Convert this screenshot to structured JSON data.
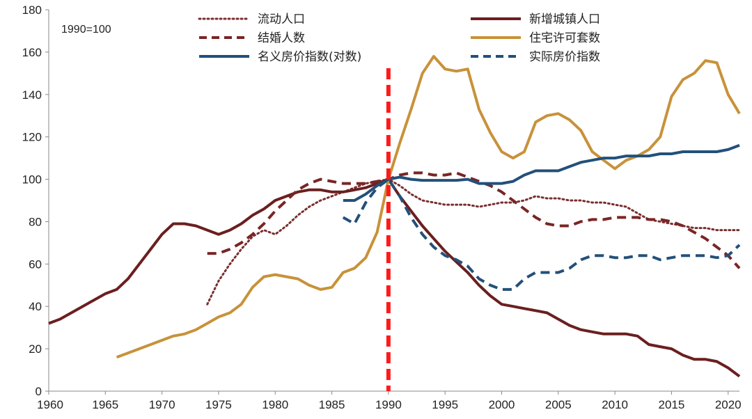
{
  "chart_data": {
    "type": "line",
    "title": "",
    "note": "1990=100",
    "xlabel": "",
    "ylabel": "",
    "xlim": [
      1960,
      2021
    ],
    "ylim": [
      0,
      180
    ],
    "x_ticks": [
      1960,
      1965,
      1970,
      1975,
      1980,
      1985,
      1990,
      1995,
      2000,
      2005,
      2010,
      2015,
      2020
    ],
    "y_ticks": [
      0,
      20,
      40,
      60,
      80,
      100,
      120,
      140,
      160,
      180
    ],
    "reference_line": {
      "x": 1990,
      "color": "#ff1a1a",
      "style": "dashed"
    },
    "series": [
      {
        "name": "流动人口",
        "color": "#7a2e2e",
        "style": "dotted",
        "x": [
          1974,
          1975,
          1976,
          1977,
          1978,
          1979,
          1980,
          1981,
          1982,
          1983,
          1984,
          1985,
          1986,
          1987,
          1988,
          1989,
          1990,
          1991,
          1992,
          1993,
          1994,
          1995,
          1996,
          1997,
          1998,
          1999,
          2000,
          2001,
          2002,
          2003,
          2004,
          2005,
          2006,
          2007,
          2008,
          2009,
          2010,
          2011,
          2012,
          2013,
          2014,
          2015,
          2016,
          2017,
          2018,
          2019,
          2020,
          2021
        ],
        "values": [
          41,
          52,
          60,
          67,
          73,
          76,
          74,
          78,
          83,
          87,
          90,
          92,
          94,
          96,
          98,
          99,
          100,
          97,
          93,
          90,
          89,
          88,
          88,
          88,
          87,
          88,
          89,
          89,
          90,
          92,
          91,
          91,
          90,
          90,
          89,
          89,
          88,
          87,
          84,
          81,
          80,
          79,
          78,
          77,
          77,
          76,
          76,
          76
        ]
      },
      {
        "name": "新增城镇人口",
        "color": "#6b1f1f",
        "style": "solid",
        "x": [
          1960,
          1961,
          1962,
          1963,
          1964,
          1965,
          1966,
          1967,
          1968,
          1969,
          1970,
          1971,
          1972,
          1973,
          1974,
          1975,
          1976,
          1977,
          1978,
          1979,
          1980,
          1981,
          1982,
          1983,
          1984,
          1985,
          1986,
          1987,
          1988,
          1989,
          1990,
          1991,
          1992,
          1993,
          1994,
          1995,
          1996,
          1997,
          1998,
          1999,
          2000,
          2001,
          2002,
          2003,
          2004,
          2005,
          2006,
          2007,
          2008,
          2009,
          2010,
          2011,
          2012,
          2013,
          2014,
          2015,
          2016,
          2017,
          2018,
          2019,
          2020,
          2021
        ],
        "values": [
          32,
          34,
          37,
          40,
          43,
          46,
          48,
          53,
          60,
          67,
          74,
          79,
          79,
          78,
          76,
          74,
          76,
          79,
          83,
          86,
          90,
          92,
          94,
          95,
          95,
          94,
          94,
          95,
          96,
          98,
          100,
          92,
          85,
          78,
          72,
          66,
          61,
          56,
          50,
          45,
          41,
          40,
          39,
          38,
          37,
          34,
          31,
          29,
          28,
          27,
          27,
          27,
          26,
          22,
          21,
          20,
          17,
          15,
          15,
          14,
          11,
          7
        ]
      },
      {
        "name": "结婚人数",
        "color": "#7a2525",
        "style": "dashed",
        "x": [
          1974,
          1975,
          1976,
          1977,
          1978,
          1979,
          1980,
          1981,
          1982,
          1983,
          1984,
          1985,
          1986,
          1987,
          1988,
          1989,
          1990,
          1991,
          1992,
          1993,
          1994,
          1995,
          1996,
          1997,
          1998,
          1999,
          2000,
          2001,
          2002,
          2003,
          2004,
          2005,
          2006,
          2007,
          2008,
          2009,
          2010,
          2011,
          2012,
          2013,
          2014,
          2015,
          2016,
          2017,
          2018,
          2019,
          2020,
          2021
        ],
        "values": [
          65,
          65,
          67,
          70,
          74,
          79,
          85,
          90,
          95,
          98,
          100,
          99,
          98,
          98,
          98,
          99,
          100,
          102,
          103,
          103,
          102,
          102,
          103,
          101,
          99,
          97,
          94,
          90,
          86,
          82,
          79,
          78,
          78,
          80,
          81,
          81,
          82,
          82,
          82,
          81,
          81,
          80,
          78,
          75,
          72,
          68,
          64,
          58
        ]
      },
      {
        "name": "住宅许可套数",
        "color": "#c8923a",
        "style": "solid",
        "x": [
          1966,
          1967,
          1968,
          1969,
          1970,
          1971,
          1972,
          1973,
          1974,
          1975,
          1976,
          1977,
          1978,
          1979,
          1980,
          1981,
          1982,
          1983,
          1984,
          1985,
          1986,
          1987,
          1988,
          1989,
          1990,
          1991,
          1992,
          1993,
          1994,
          1995,
          1996,
          1997,
          1998,
          1999,
          2000,
          2001,
          2002,
          2003,
          2004,
          2005,
          2006,
          2007,
          2008,
          2009,
          2010,
          2011,
          2012,
          2013,
          2014,
          2015,
          2016,
          2017,
          2018,
          2019,
          2020,
          2021
        ],
        "values": [
          16,
          18,
          20,
          22,
          24,
          26,
          27,
          29,
          32,
          35,
          37,
          41,
          49,
          54,
          55,
          54,
          53,
          50,
          48,
          49,
          56,
          58,
          63,
          75,
          100,
          117,
          133,
          150,
          158,
          152,
          151,
          152,
          133,
          122,
          113,
          110,
          113,
          127,
          130,
          131,
          128,
          123,
          113,
          109,
          105,
          109,
          111,
          114,
          120,
          139,
          147,
          150,
          156,
          155,
          140,
          131
        ]
      },
      {
        "name": "名义房价指数(对数)",
        "color": "#23507a",
        "style": "solid",
        "x": [
          1986,
          1987,
          1988,
          1989,
          1990,
          1991,
          1992,
          1993,
          1994,
          1995,
          1996,
          1997,
          1998,
          1999,
          2000,
          2001,
          2002,
          2003,
          2004,
          2005,
          2006,
          2007,
          2008,
          2009,
          2010,
          2011,
          2012,
          2013,
          2014,
          2015,
          2016,
          2017,
          2018,
          2019,
          2020,
          2021
        ],
        "values": [
          90,
          90,
          93,
          97,
          100,
          101,
          100,
          99.5,
          99.5,
          99.5,
          99.5,
          100,
          98,
          98,
          98,
          99,
          102,
          104,
          104,
          104,
          106,
          108,
          109,
          110,
          110,
          111,
          111,
          111,
          112,
          112,
          113,
          113,
          113,
          113,
          114,
          116
        ]
      },
      {
        "name": "实际房价指数",
        "color": "#23507a",
        "style": "dashed",
        "x": [
          1986,
          1987,
          1988,
          1989,
          1990,
          1991,
          1992,
          1993,
          1994,
          1995,
          1996,
          1997,
          1998,
          1999,
          2000,
          2001,
          2002,
          2003,
          2004,
          2005,
          2006,
          2007,
          2008,
          2009,
          2010,
          2011,
          2012,
          2013,
          2014,
          2015,
          2016,
          2017,
          2018,
          2019,
          2020,
          2021
        ],
        "values": [
          82,
          79,
          89,
          96,
          100,
          92,
          82,
          74,
          68,
          64,
          62,
          59,
          53,
          50,
          48,
          48,
          53,
          56,
          56,
          56,
          58,
          62,
          64,
          64,
          63,
          63,
          64,
          64,
          62,
          63,
          64,
          64,
          64,
          63,
          64,
          69
        ]
      }
    ],
    "legend": {
      "position": "top",
      "rows": [
        [
          "流动人口",
          "新增城镇人口"
        ],
        [
          "结婚人数",
          "住宅许可套数"
        ],
        [
          "名义房价指数(对数)",
          "实际房价指数"
        ]
      ]
    }
  }
}
